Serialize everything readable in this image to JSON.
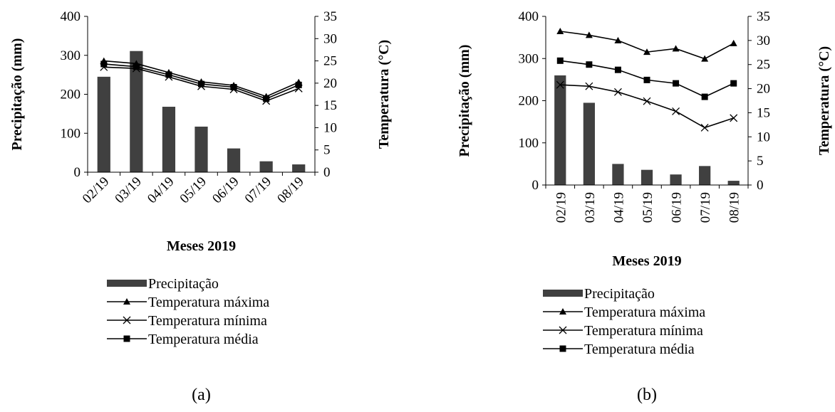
{
  "chart_data": [
    {
      "type": "bar",
      "panel_label": "(a)",
      "categories": [
        "02/19",
        "03/19",
        "04/19",
        "05/19",
        "06/19",
        "07/19",
        "08/19"
      ],
      "xlabel": "Meses 2019",
      "ylabel": "Precipitação (mm)",
      "y2label": "Temperatura (°C)",
      "ylim": [
        0,
        400
      ],
      "y2lim": [
        0,
        35
      ],
      "yticks": [
        0,
        100,
        200,
        300,
        400
      ],
      "y2ticks": [
        0,
        5,
        10,
        15,
        20,
        25,
        30,
        35
      ],
      "x_tick_rotation": "diagonal",
      "grid": false,
      "legend_position": "bottom",
      "series": [
        {
          "name": "Precipitação",
          "kind": "bar",
          "axis": "left",
          "color": "#404040",
          "values": [
            245,
            311,
            168,
            117,
            61,
            28,
            20
          ]
        },
        {
          "name": "Temperatura máxima",
          "kind": "line",
          "axis": "right",
          "marker": "triangle",
          "values": [
            25.0,
            24.4,
            22.4,
            20.3,
            19.5,
            17.0,
            20.2
          ]
        },
        {
          "name": "Temperatura mínima",
          "kind": "line",
          "axis": "right",
          "marker": "x",
          "values": [
            23.6,
            23.3,
            21.4,
            19.3,
            18.6,
            16.0,
            18.8
          ]
        },
        {
          "name": "Temperatura média",
          "kind": "line",
          "axis": "right",
          "marker": "square",
          "values": [
            24.3,
            23.7,
            21.9,
            19.8,
            19.1,
            16.5,
            19.6
          ]
        }
      ]
    },
    {
      "type": "bar",
      "panel_label": "(b)",
      "categories": [
        "02/19",
        "03/19",
        "04/19",
        "05/19",
        "06/19",
        "07/19",
        "08/19"
      ],
      "xlabel": "Meses 2019",
      "ylabel": "Precipitação (mm)",
      "y2label": "Temperatura (°C)",
      "ylim": [
        0,
        400
      ],
      "y2lim": [
        0,
        35
      ],
      "yticks": [
        0,
        100,
        200,
        300,
        400
      ],
      "y2ticks": [
        0,
        5,
        10,
        15,
        20,
        25,
        30,
        35
      ],
      "x_tick_rotation": "vertical",
      "grid": false,
      "legend_position": "bottom",
      "series": [
        {
          "name": "Precipitação",
          "kind": "bar",
          "axis": "left",
          "color": "#404040",
          "values": [
            260,
            195,
            50,
            36,
            25,
            45,
            10
          ]
        },
        {
          "name": "Temperatura máxima",
          "kind": "line",
          "axis": "right",
          "marker": "triangle",
          "values": [
            31.9,
            31.1,
            30.0,
            27.6,
            28.3,
            26.2,
            29.4
          ]
        },
        {
          "name": "Temperatura mínima",
          "kind": "line",
          "axis": "right",
          "marker": "x",
          "values": [
            20.8,
            20.5,
            19.3,
            17.4,
            15.3,
            11.9,
            13.9
          ]
        },
        {
          "name": "Temperatura média",
          "kind": "line",
          "axis": "right",
          "marker": "square",
          "values": [
            25.8,
            25.0,
            23.9,
            21.8,
            21.1,
            18.3,
            21.1
          ]
        }
      ]
    }
  ]
}
